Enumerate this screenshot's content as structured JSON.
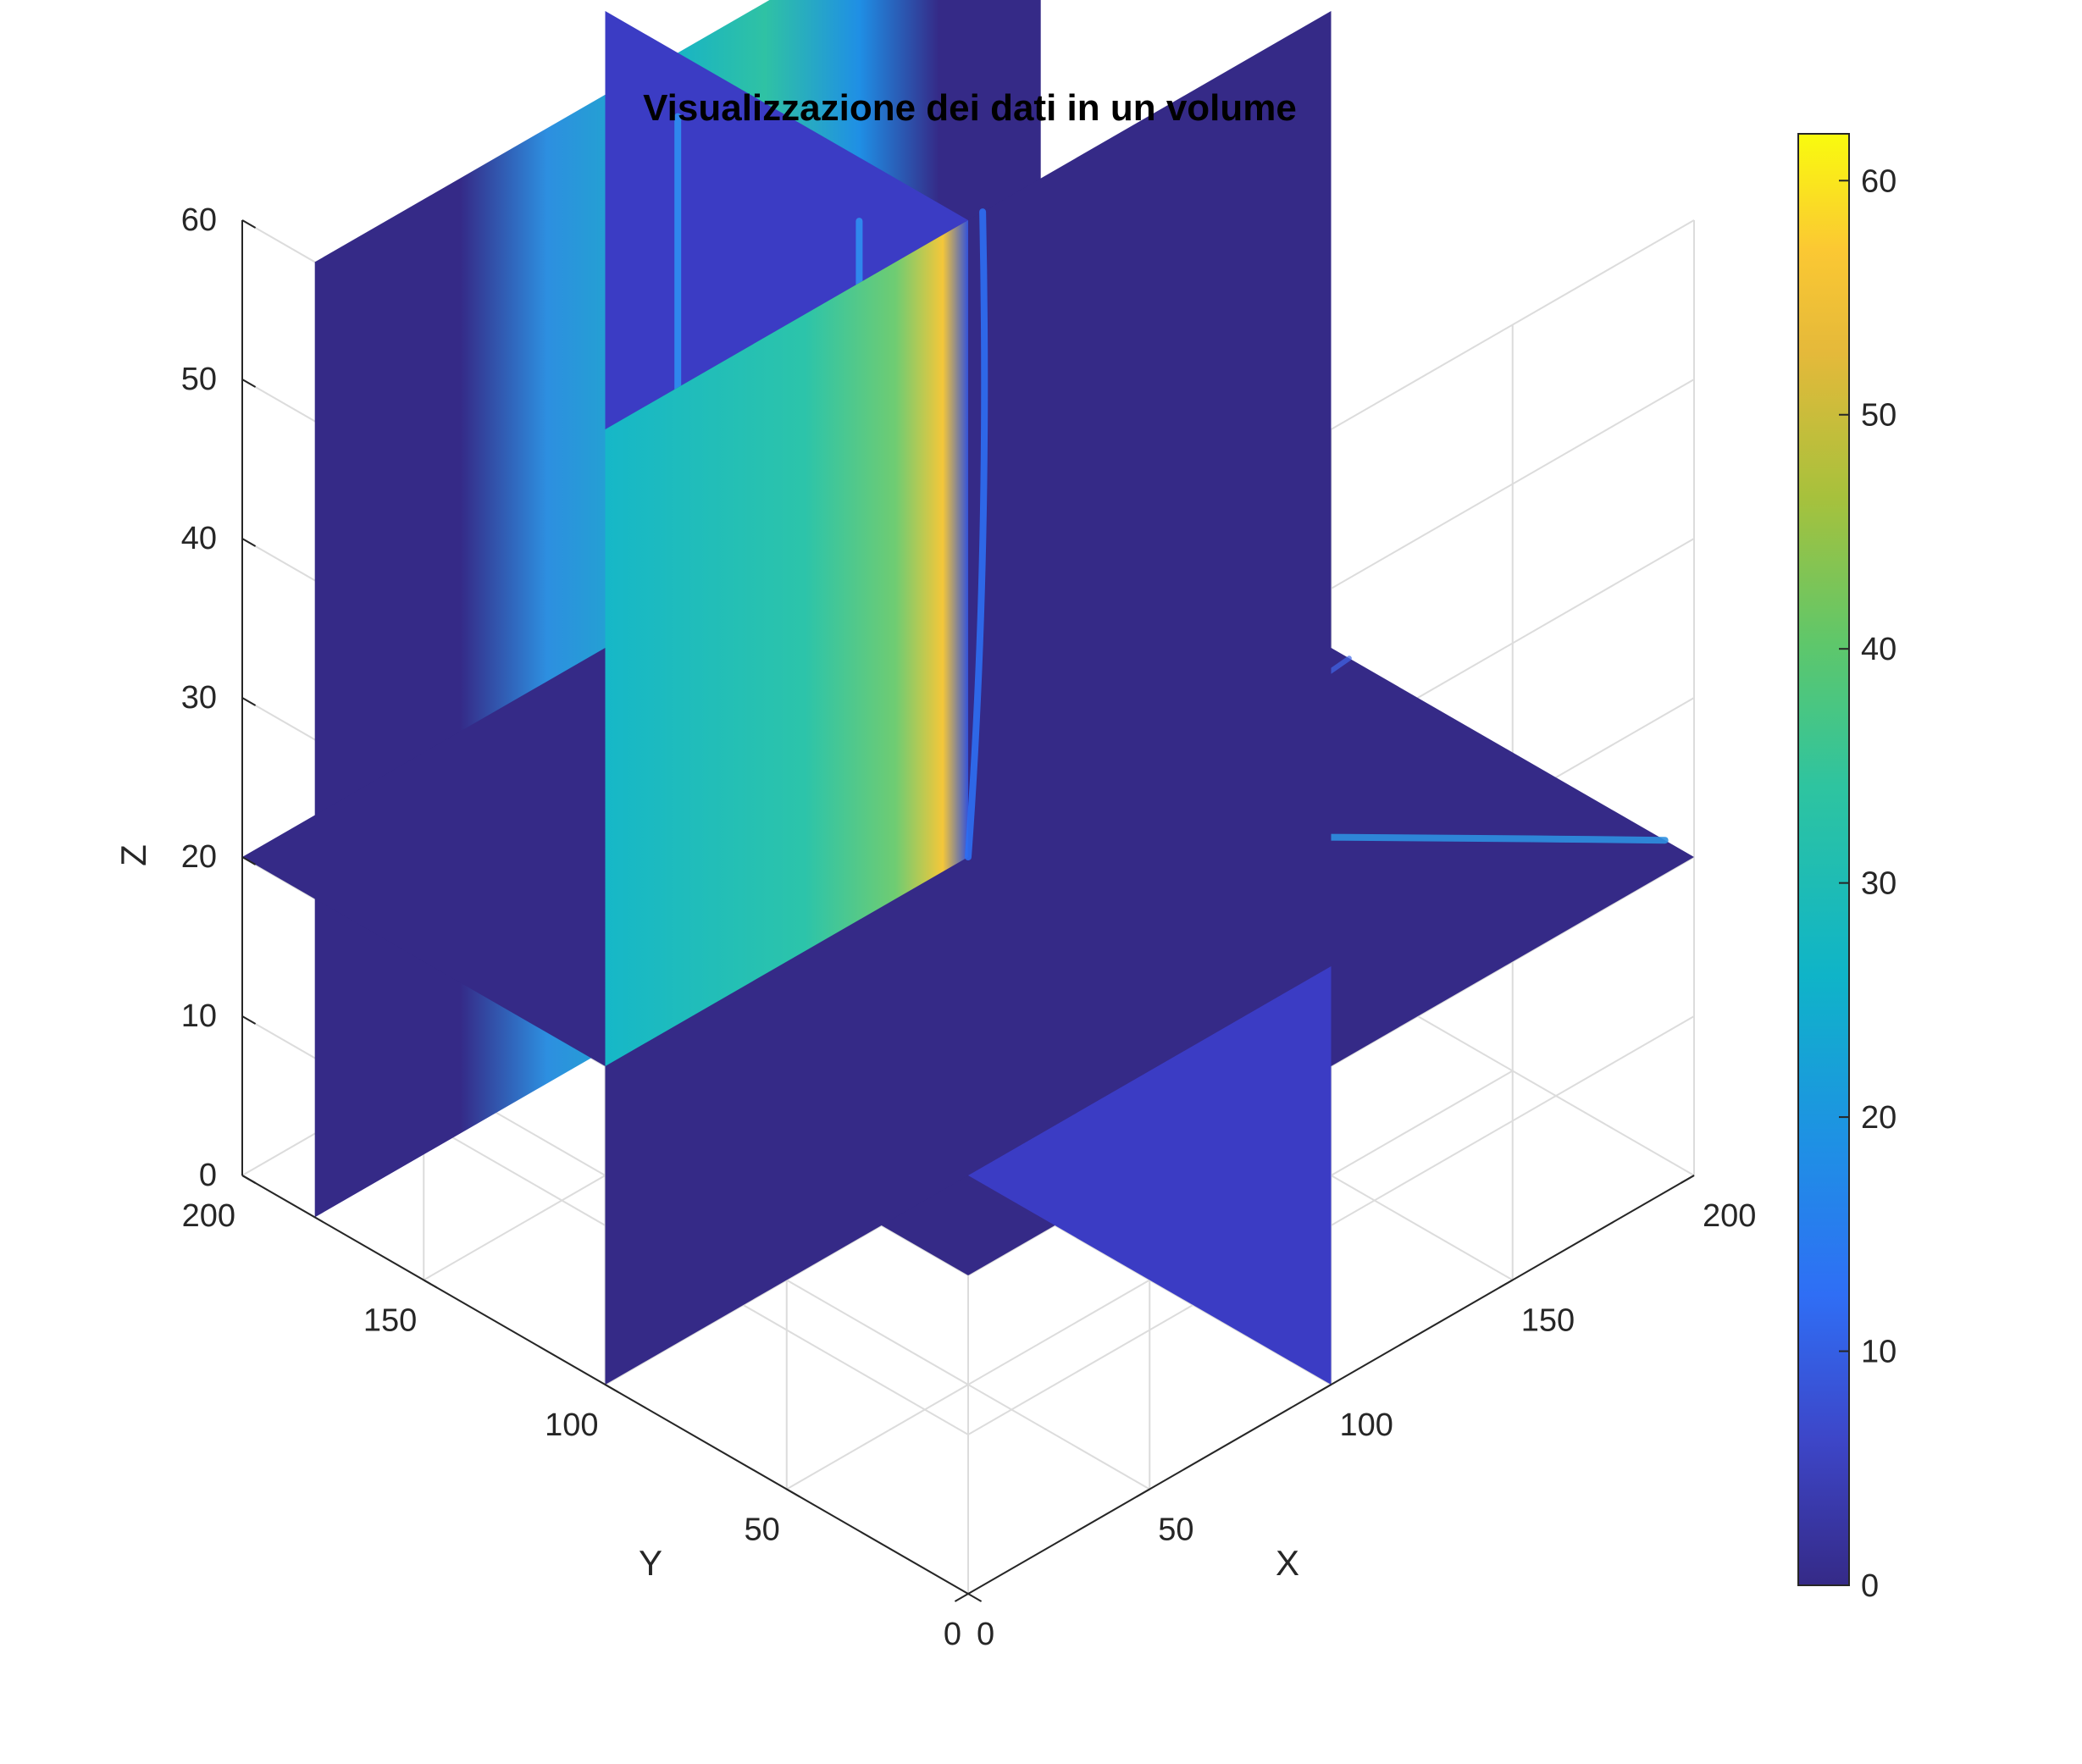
{
  "chart_data": {
    "type": "heatmap",
    "subtype": "volume-slice-3d",
    "title": "Visualizzazione dei dati in un volume",
    "xlabel": "X",
    "ylabel": "Y",
    "zlabel": "Z",
    "xlim": [
      0,
      200
    ],
    "ylim": [
      0,
      200
    ],
    "zlim": [
      0,
      60
    ],
    "xticks": [
      "0",
      "50",
      "100",
      "150",
      "200"
    ],
    "yticks": [
      "0",
      "50",
      "100",
      "150",
      "200"
    ],
    "zticks": [
      "0",
      "10",
      "20",
      "30",
      "40",
      "50",
      "60"
    ],
    "colorbar": {
      "colormap": "parula",
      "range": [
        0,
        62
      ],
      "ticks": [
        "0",
        "10",
        "20",
        "30",
        "40",
        "50",
        "60"
      ]
    },
    "slices": [
      {
        "plane": "z",
        "value": 20
      },
      {
        "plane": "x",
        "value": 100
      },
      {
        "plane": "y",
        "value": 100
      },
      {
        "plane": "y",
        "value": 180
      }
    ],
    "grid": true,
    "colors": {
      "low": "#352a87",
      "mid": "#0fb4c8",
      "high": "#f9fb0e"
    }
  }
}
